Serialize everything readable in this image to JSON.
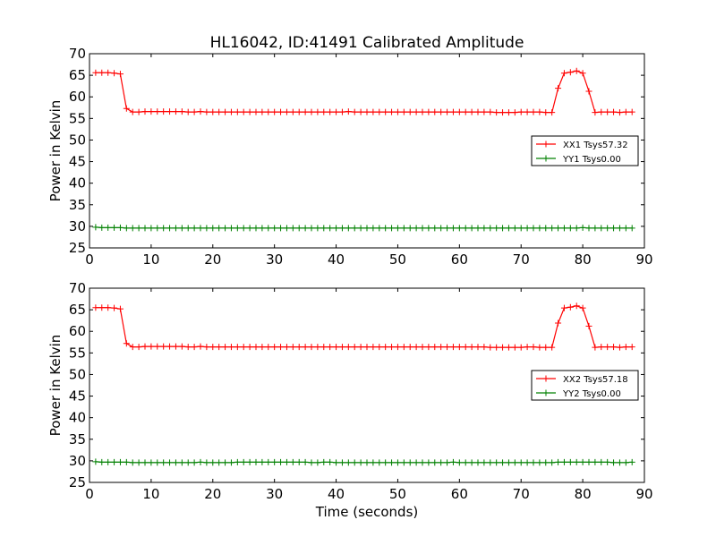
{
  "title": "HL16042, ID:41491 Calibrated Amplitude",
  "chart_data": [
    {
      "type": "line",
      "ylabel": "Power in Kelvin",
      "xlabel": "",
      "xlim": [
        0,
        90
      ],
      "ylim": [
        25,
        70
      ],
      "xticks": [
        "0",
        "10",
        "20",
        "30",
        "40",
        "50",
        "60",
        "70",
        "80",
        "90"
      ],
      "yticks": [
        "25",
        "30",
        "35",
        "40",
        "45",
        "50",
        "55",
        "60",
        "65",
        "70"
      ],
      "grid": false,
      "legend_position": "center-right",
      "x": [
        1,
        2,
        3,
        4,
        5,
        6,
        7,
        8,
        9,
        10,
        11,
        12,
        13,
        14,
        15,
        16,
        17,
        18,
        19,
        20,
        21,
        22,
        23,
        24,
        25,
        26,
        27,
        28,
        29,
        30,
        31,
        32,
        33,
        34,
        35,
        36,
        37,
        38,
        39,
        40,
        41,
        42,
        43,
        44,
        45,
        46,
        47,
        48,
        49,
        50,
        51,
        52,
        53,
        54,
        55,
        56,
        57,
        58,
        59,
        60,
        61,
        62,
        63,
        64,
        65,
        66,
        67,
        68,
        69,
        70,
        71,
        72,
        73,
        74,
        75,
        76,
        77,
        78,
        79,
        80,
        81,
        82,
        83,
        84,
        85,
        86,
        87,
        88
      ],
      "series": [
        {
          "name": "XX1 Tsys57.32",
          "color": "#ff0000",
          "values": [
            65.6,
            65.6,
            65.6,
            65.5,
            65.3,
            57.3,
            56.5,
            56.5,
            56.6,
            56.6,
            56.6,
            56.6,
            56.6,
            56.6,
            56.6,
            56.5,
            56.5,
            56.6,
            56.5,
            56.5,
            56.5,
            56.5,
            56.5,
            56.5,
            56.5,
            56.5,
            56.5,
            56.5,
            56.5,
            56.5,
            56.5,
            56.5,
            56.5,
            56.5,
            56.5,
            56.5,
            56.5,
            56.5,
            56.5,
            56.5,
            56.5,
            56.6,
            56.5,
            56.5,
            56.5,
            56.5,
            56.5,
            56.5,
            56.5,
            56.5,
            56.5,
            56.5,
            56.5,
            56.5,
            56.5,
            56.5,
            56.5,
            56.5,
            56.5,
            56.5,
            56.5,
            56.5,
            56.5,
            56.5,
            56.5,
            56.4,
            56.4,
            56.4,
            56.4,
            56.5,
            56.5,
            56.5,
            56.5,
            56.4,
            56.4,
            62.0,
            65.5,
            65.7,
            66.0,
            65.5,
            61.3,
            56.4,
            56.5,
            56.5,
            56.5,
            56.4,
            56.5,
            56.5
          ]
        },
        {
          "name": "YY1 Tsys0.00",
          "color": "#008000",
          "values": [
            29.8,
            29.7,
            29.7,
            29.7,
            29.7,
            29.6,
            29.6,
            29.6,
            29.6,
            29.6,
            29.6,
            29.6,
            29.6,
            29.6,
            29.6,
            29.6,
            29.6,
            29.6,
            29.6,
            29.6,
            29.6,
            29.6,
            29.6,
            29.6,
            29.6,
            29.6,
            29.6,
            29.6,
            29.6,
            29.6,
            29.6,
            29.6,
            29.6,
            29.6,
            29.6,
            29.6,
            29.6,
            29.6,
            29.6,
            29.6,
            29.6,
            29.6,
            29.6,
            29.6,
            29.6,
            29.6,
            29.6,
            29.6,
            29.6,
            29.6,
            29.6,
            29.6,
            29.6,
            29.6,
            29.6,
            29.6,
            29.6,
            29.6,
            29.6,
            29.6,
            29.6,
            29.6,
            29.6,
            29.6,
            29.6,
            29.6,
            29.6,
            29.6,
            29.6,
            29.6,
            29.6,
            29.6,
            29.6,
            29.6,
            29.6,
            29.6,
            29.6,
            29.6,
            29.6,
            29.7,
            29.6,
            29.6,
            29.6,
            29.6,
            29.6,
            29.6,
            29.6,
            29.6
          ]
        }
      ]
    },
    {
      "type": "line",
      "ylabel": "Power in Kelvin",
      "xlabel": "Time (seconds)",
      "xlim": [
        0,
        90
      ],
      "ylim": [
        25,
        70
      ],
      "xticks": [
        "0",
        "10",
        "20",
        "30",
        "40",
        "50",
        "60",
        "70",
        "80",
        "90"
      ],
      "yticks": [
        "25",
        "30",
        "35",
        "40",
        "45",
        "50",
        "55",
        "60",
        "65",
        "70"
      ],
      "grid": false,
      "legend_position": "center-right",
      "x": [
        1,
        2,
        3,
        4,
        5,
        6,
        7,
        8,
        9,
        10,
        11,
        12,
        13,
        14,
        15,
        16,
        17,
        18,
        19,
        20,
        21,
        22,
        23,
        24,
        25,
        26,
        27,
        28,
        29,
        30,
        31,
        32,
        33,
        34,
        35,
        36,
        37,
        38,
        39,
        40,
        41,
        42,
        43,
        44,
        45,
        46,
        47,
        48,
        49,
        50,
        51,
        52,
        53,
        54,
        55,
        56,
        57,
        58,
        59,
        60,
        61,
        62,
        63,
        64,
        65,
        66,
        67,
        68,
        69,
        70,
        71,
        72,
        73,
        74,
        75,
        76,
        77,
        78,
        79,
        80,
        81,
        82,
        83,
        84,
        85,
        86,
        87,
        88
      ],
      "series": [
        {
          "name": "XX2 Tsys57.18",
          "color": "#ff0000",
          "values": [
            65.5,
            65.5,
            65.5,
            65.4,
            65.2,
            57.2,
            56.4,
            56.4,
            56.5,
            56.5,
            56.5,
            56.5,
            56.5,
            56.5,
            56.5,
            56.4,
            56.4,
            56.5,
            56.4,
            56.4,
            56.4,
            56.4,
            56.4,
            56.4,
            56.4,
            56.4,
            56.4,
            56.4,
            56.4,
            56.4,
            56.4,
            56.4,
            56.4,
            56.4,
            56.4,
            56.4,
            56.4,
            56.4,
            56.4,
            56.4,
            56.4,
            56.4,
            56.4,
            56.4,
            56.4,
            56.4,
            56.4,
            56.4,
            56.4,
            56.4,
            56.4,
            56.4,
            56.4,
            56.4,
            56.4,
            56.4,
            56.4,
            56.4,
            56.4,
            56.4,
            56.4,
            56.4,
            56.4,
            56.4,
            56.3,
            56.3,
            56.3,
            56.3,
            56.3,
            56.3,
            56.4,
            56.4,
            56.3,
            56.3,
            56.3,
            61.9,
            65.4,
            65.6,
            65.9,
            65.4,
            61.2,
            56.3,
            56.4,
            56.4,
            56.4,
            56.3,
            56.4,
            56.4
          ]
        },
        {
          "name": "YY2 Tsys0.00",
          "color": "#008000",
          "values": [
            29.8,
            29.7,
            29.7,
            29.7,
            29.7,
            29.7,
            29.6,
            29.6,
            29.6,
            29.6,
            29.6,
            29.6,
            29.6,
            29.6,
            29.6,
            29.6,
            29.6,
            29.7,
            29.6,
            29.6,
            29.6,
            29.6,
            29.6,
            29.7,
            29.7,
            29.7,
            29.7,
            29.7,
            29.7,
            29.7,
            29.7,
            29.7,
            29.7,
            29.7,
            29.7,
            29.6,
            29.6,
            29.7,
            29.7,
            29.6,
            29.6,
            29.6,
            29.6,
            29.6,
            29.6,
            29.6,
            29.6,
            29.6,
            29.6,
            29.6,
            29.6,
            29.6,
            29.6,
            29.6,
            29.6,
            29.6,
            29.6,
            29.6,
            29.7,
            29.6,
            29.6,
            29.6,
            29.6,
            29.6,
            29.6,
            29.6,
            29.6,
            29.6,
            29.6,
            29.6,
            29.6,
            29.6,
            29.6,
            29.6,
            29.6,
            29.7,
            29.7,
            29.7,
            29.7,
            29.7,
            29.7,
            29.7,
            29.7,
            29.7,
            29.6,
            29.6,
            29.6,
            29.7
          ]
        }
      ]
    }
  ]
}
